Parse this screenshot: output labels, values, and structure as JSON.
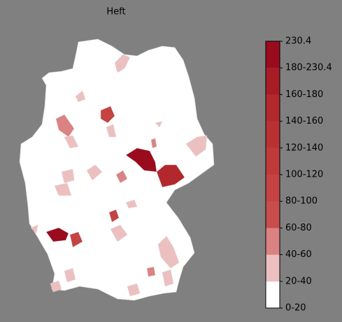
{
  "title": "Heft",
  "legend": {
    "ticks": [
      "0-20",
      "20-40",
      "40-60",
      "60-80",
      "80-100",
      "100-120",
      "120-140",
      "140-160",
      "160-180",
      "180-230.4",
      "230.4"
    ],
    "colors": [
      "#ffffff",
      "#ecc0c0",
      "#db8282",
      "#c94d4d",
      "#c54343",
      "#c03a3a",
      "#ba3133",
      "#b2282d",
      "#a81c26",
      "#9a0b1e"
    ]
  }
}
